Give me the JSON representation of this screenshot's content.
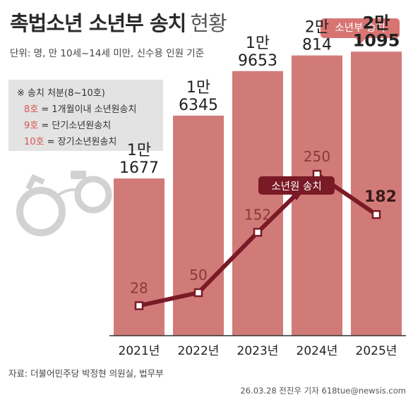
{
  "header": {
    "title": "촉법소년 소년부 송치",
    "title_suffix": "현황",
    "unit_note": "단위: 명, 만 10세~14세 미만, 신수용 인원 기준"
  },
  "legend_box": {
    "heading": "※ 송치 처분(8~10호)",
    "items": [
      {
        "code": "8호",
        "text": " = 1개월이내 소년원송치"
      },
      {
        "code": "9호",
        "text": " = 단기소년원송치"
      },
      {
        "code": "10호",
        "text": " = 장기소년원송치"
      }
    ]
  },
  "colors": {
    "bar": "#d17b79",
    "line": "#7a1a27",
    "code_text": "#d9534f"
  },
  "source": "자료: 더불어민주당 박정현 의원실, 법무부",
  "credit": "26.03.28 전진우 기자 618tue@newsis.com",
  "chart_data": {
    "type": "bar",
    "categories": [
      "2021년",
      "2022년",
      "2023년",
      "2024년",
      "2025년"
    ],
    "series": [
      {
        "name": "소년부 송치",
        "type": "bar",
        "values": [
          11677,
          16345,
          19653,
          20814,
          21095
        ],
        "labels": [
          [
            "1만",
            "1677"
          ],
          [
            "1만",
            "6345"
          ],
          [
            "1만",
            "9653"
          ],
          [
            "2만",
            "814"
          ],
          [
            "2만",
            "1095"
          ]
        ]
      },
      {
        "name": "소년원 송치",
        "type": "line",
        "values": [
          28,
          50,
          152,
          250,
          182
        ]
      }
    ],
    "ylim": [
      0,
      22000
    ],
    "y2lim": [
      0,
      330
    ],
    "grid": false
  },
  "icons": [
    "handcuffs-icon"
  ]
}
